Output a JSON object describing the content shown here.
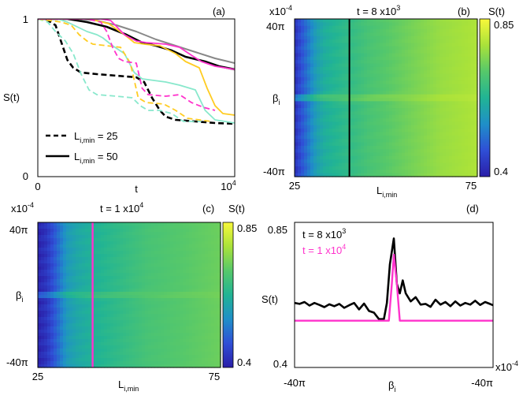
{
  "chart_data": [
    {
      "panel": "a",
      "type": "line",
      "panel_label": "(a)",
      "xlabel": "t",
      "ylabel": "S(t)",
      "xlim": [
        0,
        10000
      ],
      "ylim": [
        0,
        1
      ],
      "x_ticks": [
        "0",
        "10"
      ],
      "x_tick_exp": "4",
      "y_ticks": [
        "0",
        "1"
      ],
      "legend": [
        {
          "style": "dashed",
          "prefix": "L",
          "sub": "i,min",
          "suffix": " = 25"
        },
        {
          "style": "solid",
          "prefix": "L",
          "sub": "i,min",
          "suffix": " = 50"
        }
      ],
      "series": [
        {
          "color": "#000000",
          "style": "dashed",
          "width": 2.6,
          "points": [
            [
              0,
              1
            ],
            [
              400,
              1
            ],
            [
              900,
              0.96
            ],
            [
              1200,
              0.85
            ],
            [
              1500,
              0.74
            ],
            [
              1800,
              0.69
            ],
            [
              2200,
              0.66
            ],
            [
              3000,
              0.65
            ],
            [
              4000,
              0.64
            ],
            [
              5000,
              0.63
            ],
            [
              5400,
              0.6
            ],
            [
              5800,
              0.5
            ],
            [
              6200,
              0.42
            ],
            [
              6500,
              0.38
            ],
            [
              7000,
              0.36
            ],
            [
              8000,
              0.35
            ],
            [
              9000,
              0.34
            ],
            [
              10000,
              0.335
            ]
          ]
        },
        {
          "color": "#000000",
          "style": "solid",
          "width": 2.6,
          "points": [
            [
              0,
              1
            ],
            [
              1500,
              1
            ],
            [
              2500,
              0.98
            ],
            [
              3500,
              0.95
            ],
            [
              4500,
              0.9
            ],
            [
              5300,
              0.85
            ],
            [
              6000,
              0.83
            ],
            [
              6800,
              0.8
            ],
            [
              7500,
              0.76
            ],
            [
              8500,
              0.73
            ],
            [
              9200,
              0.7
            ],
            [
              10000,
              0.68
            ]
          ]
        },
        {
          "color": "#888888",
          "style": "solid",
          "width": 2,
          "points": [
            [
              0,
              1
            ],
            [
              2000,
              1
            ],
            [
              3000,
              0.99
            ],
            [
              4000,
              0.96
            ],
            [
              5000,
              0.92
            ],
            [
              6000,
              0.87
            ],
            [
              7000,
              0.83
            ],
            [
              8000,
              0.79
            ],
            [
              9000,
              0.75
            ],
            [
              10000,
              0.72
            ]
          ]
        },
        {
          "color": "#88e8cc",
          "style": "dashed",
          "width": 1.8,
          "points": [
            [
              0,
              1
            ],
            [
              500,
              0.98
            ],
            [
              900,
              0.92
            ],
            [
              1400,
              0.86
            ],
            [
              1800,
              0.78
            ],
            [
              2200,
              0.65
            ],
            [
              2600,
              0.55
            ],
            [
              3000,
              0.52
            ],
            [
              4000,
              0.51
            ],
            [
              4800,
              0.5
            ],
            [
              5200,
              0.45
            ],
            [
              5600,
              0.42
            ],
            [
              6200,
              0.42
            ],
            [
              6800,
              0.4
            ],
            [
              7400,
              0.35
            ],
            [
              8000,
              0.35
            ],
            [
              8300,
              0.35
            ]
          ]
        },
        {
          "color": "#88e8cc",
          "style": "solid",
          "width": 1.8,
          "points": [
            [
              0,
              1
            ],
            [
              1000,
              1
            ],
            [
              1500,
              0.98
            ],
            [
              2000,
              0.95
            ],
            [
              2500,
              0.92
            ],
            [
              3000,
              0.9
            ],
            [
              3300,
              0.88
            ],
            [
              3800,
              0.83
            ],
            [
              4400,
              0.78
            ],
            [
              4900,
              0.66
            ],
            [
              5300,
              0.62
            ],
            [
              6500,
              0.6
            ],
            [
              7200,
              0.58
            ],
            [
              8000,
              0.55
            ],
            [
              8500,
              0.42
            ],
            [
              9000,
              0.36
            ],
            [
              10000,
              0.34
            ]
          ]
        },
        {
          "color": "#ffcc22",
          "style": "dashed",
          "width": 1.8,
          "points": [
            [
              0,
              1
            ],
            [
              1200,
              0.98
            ],
            [
              1700,
              0.96
            ],
            [
              2100,
              0.9
            ],
            [
              2500,
              0.86
            ],
            [
              2800,
              0.84
            ],
            [
              3500,
              0.83
            ],
            [
              4200,
              0.82
            ],
            [
              4700,
              0.72
            ],
            [
              5100,
              0.5
            ],
            [
              5500,
              0.47
            ],
            [
              6400,
              0.46
            ],
            [
              7000,
              0.42
            ],
            [
              7600,
              0.37
            ],
            [
              8200,
              0.36
            ],
            [
              8800,
              0.35
            ]
          ]
        },
        {
          "color": "#ffcc22",
          "style": "solid",
          "width": 1.8,
          "points": [
            [
              0,
              1
            ],
            [
              2600,
              1
            ],
            [
              3600,
              0.97
            ],
            [
              4400,
              0.9
            ],
            [
              4900,
              0.85
            ],
            [
              5400,
              0.84
            ],
            [
              6200,
              0.83
            ],
            [
              7000,
              0.78
            ],
            [
              7500,
              0.73
            ],
            [
              8200,
              0.69
            ],
            [
              8600,
              0.56
            ],
            [
              9000,
              0.45
            ],
            [
              9400,
              0.4
            ],
            [
              10000,
              0.39
            ]
          ]
        },
        {
          "color": "#ff33cc",
          "style": "dashed",
          "width": 1.8,
          "points": [
            [
              0,
              1
            ],
            [
              2500,
              1
            ],
            [
              3200,
              0.98
            ],
            [
              3500,
              0.92
            ],
            [
              3800,
              0.82
            ],
            [
              4100,
              0.75
            ],
            [
              4400,
              0.73
            ],
            [
              5000,
              0.72
            ],
            [
              5300,
              0.56
            ],
            [
              5600,
              0.52
            ],
            [
              6500,
              0.51
            ],
            [
              7200,
              0.52
            ],
            [
              7800,
              0.47
            ],
            [
              8400,
              0.44
            ],
            [
              9000,
              0.42
            ]
          ]
        },
        {
          "color": "#ff33cc",
          "style": "solid",
          "width": 1.8,
          "points": [
            [
              0,
              1
            ],
            [
              3200,
              1
            ],
            [
              3700,
              0.99
            ],
            [
              4400,
              0.9
            ],
            [
              5000,
              0.86
            ],
            [
              5500,
              0.85
            ],
            [
              6500,
              0.84
            ],
            [
              7200,
              0.82
            ],
            [
              7800,
              0.77
            ],
            [
              8300,
              0.73
            ],
            [
              9000,
              0.7
            ],
            [
              10000,
              0.68
            ]
          ]
        }
      ]
    },
    {
      "panel": "b",
      "type": "heatmap",
      "panel_label": "(b)",
      "title_prefix": "t = 8 x10",
      "title_exp": "3",
      "xlabel": "L",
      "xlabel_sub": "i,min",
      "ylabel": "β",
      "ylabel_sub": "i",
      "y_scale_note": "x10",
      "y_scale_exp": "-4",
      "x_ticks": [
        "25",
        "75"
      ],
      "y_ticks": [
        "40π",
        "-40π"
      ],
      "xlim": [
        25,
        75
      ],
      "colorbar": {
        "label": "S(t)",
        "min": "0.4",
        "max": "0.85",
        "colors": [
          "#2a1ea8",
          "#2f4fd6",
          "#1f8fc8",
          "#21b494",
          "#56c86a",
          "#a9e23a",
          "#f8f83a"
        ]
      },
      "marker_line": {
        "x": 40,
        "color": "#000000"
      },
      "column_profile_x": [
        25,
        27,
        29,
        31,
        33,
        36,
        40,
        45,
        50,
        55,
        60,
        65,
        70,
        75
      ],
      "column_profile_value": [
        0.43,
        0.48,
        0.53,
        0.58,
        0.61,
        0.63,
        0.65,
        0.68,
        0.7,
        0.72,
        0.74,
        0.76,
        0.77,
        0.78
      ],
      "ridge_beta_fraction": 0.5,
      "ridge_strength": 0.12
    },
    {
      "panel": "c",
      "type": "heatmap",
      "panel_label": "(c)",
      "title_prefix": "t = 1 x10",
      "title_exp": "4",
      "xlabel": "L",
      "xlabel_sub": "i,min",
      "ylabel": "β",
      "ylabel_sub": "i",
      "y_scale_note": "x10",
      "y_scale_exp": "-4",
      "x_ticks": [
        "25",
        "75"
      ],
      "y_ticks": [
        "40π",
        "-40π"
      ],
      "xlim": [
        25,
        75
      ],
      "colorbar": {
        "label": "S(t)",
        "min": "0.4",
        "max": "0.85",
        "colors": [
          "#2a1ea8",
          "#2f4fd6",
          "#1f8fc8",
          "#21b494",
          "#56c86a",
          "#a9e23a",
          "#f8f83a"
        ]
      },
      "marker_line": {
        "x": 40,
        "color": "#ff33cc"
      },
      "column_profile_x": [
        25,
        27,
        29,
        31,
        33,
        36,
        40,
        45,
        50,
        55,
        60,
        65,
        70,
        75
      ],
      "column_profile_value": [
        0.41,
        0.43,
        0.47,
        0.52,
        0.57,
        0.6,
        0.62,
        0.64,
        0.66,
        0.68,
        0.69,
        0.7,
        0.71,
        0.72
      ],
      "ridge_beta_fraction": 0.5,
      "ridge_strength": 0.1
    },
    {
      "panel": "d",
      "type": "line",
      "panel_label": "(d)",
      "xlabel": "β",
      "xlabel_sub": "i",
      "ylabel": "S(t)",
      "x_ticks": [
        "-40π",
        "-40π"
      ],
      "x_scale_note": "x10",
      "x_scale_exp": "-4",
      "y_ticks": [
        "0.85",
        "0.4"
      ],
      "ylim": [
        0.4,
        0.85
      ],
      "xlim": [
        -1,
        1
      ],
      "legend": [
        {
          "prefix": "t = 8 x10",
          "exp": "3",
          "color": "#000000"
        },
        {
          "prefix": "t = 1 x10",
          "exp": "4",
          "color": "#ff33cc"
        }
      ],
      "series": [
        {
          "color": "#000000",
          "width": 2.6,
          "points": [
            [
              -1,
              0.6
            ],
            [
              -0.95,
              0.597
            ],
            [
              -0.9,
              0.603
            ],
            [
              -0.85,
              0.592
            ],
            [
              -0.8,
              0.6
            ],
            [
              -0.75,
              0.594
            ],
            [
              -0.7,
              0.587
            ],
            [
              -0.65,
              0.596
            ],
            [
              -0.6,
              0.59
            ],
            [
              -0.55,
              0.597
            ],
            [
              -0.5,
              0.585
            ],
            [
              -0.45,
              0.593
            ],
            [
              -0.4,
              0.6
            ],
            [
              -0.35,
              0.58
            ],
            [
              -0.3,
              0.598
            ],
            [
              -0.25,
              0.575
            ],
            [
              -0.2,
              0.57
            ],
            [
              -0.15,
              0.55
            ],
            [
              -0.1,
              0.55
            ],
            [
              -0.07,
              0.6
            ],
            [
              -0.04,
              0.72
            ],
            [
              0,
              0.8
            ],
            [
              0.03,
              0.66
            ],
            [
              0.06,
              0.63
            ],
            [
              0.09,
              0.67
            ],
            [
              0.12,
              0.63
            ],
            [
              0.17,
              0.605
            ],
            [
              0.22,
              0.618
            ],
            [
              0.27,
              0.595
            ],
            [
              0.32,
              0.597
            ],
            [
              0.37,
              0.588
            ],
            [
              0.42,
              0.61
            ],
            [
              0.47,
              0.595
            ],
            [
              0.52,
              0.603
            ],
            [
              0.57,
              0.59
            ],
            [
              0.62,
              0.605
            ],
            [
              0.67,
              0.592
            ],
            [
              0.72,
              0.6
            ],
            [
              0.77,
              0.595
            ],
            [
              0.82,
              0.607
            ],
            [
              0.87,
              0.594
            ],
            [
              0.92,
              0.603
            ],
            [
              0.96,
              0.598
            ],
            [
              1,
              0.593
            ]
          ]
        },
        {
          "color": "#ff33cc",
          "width": 2.4,
          "points": [
            [
              -1,
              0.545
            ],
            [
              -0.11,
              0.545
            ],
            [
              -0.05,
              0.545
            ],
            [
              -0.02,
              0.66
            ],
            [
              0,
              0.75
            ],
            [
              0.03,
              0.66
            ],
            [
              0.06,
              0.545
            ],
            [
              1,
              0.545
            ]
          ]
        }
      ]
    }
  ]
}
